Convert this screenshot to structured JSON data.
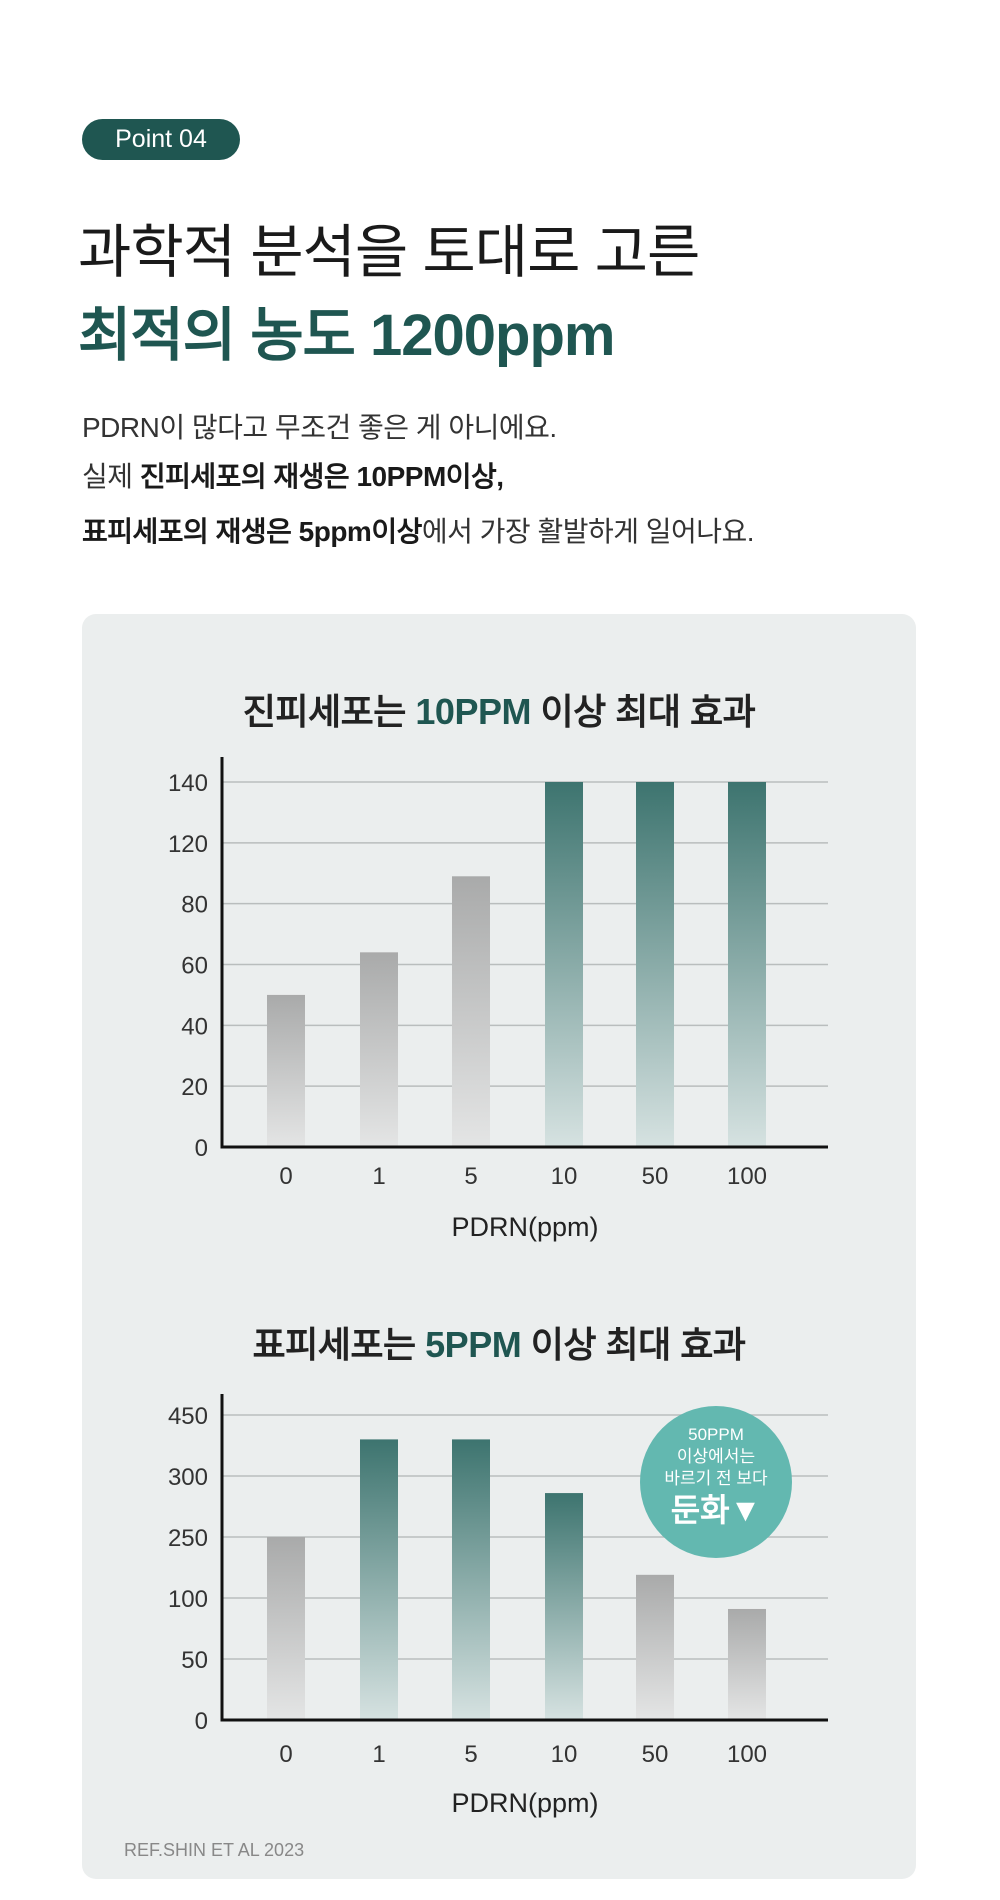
{
  "badge": "Point 04",
  "title_line1": "과학적 분석을 토대로 고른",
  "title_line2": "최적의 농도 1200ppm",
  "body": {
    "line1": "PDRN이 많다고 무조건 좋은 게 아니에요.",
    "line2_a": "실제 ",
    "line2_b": "진피세포의 재생은 10PPM이상,",
    "line3_a": "표피세포의 재생은 5ppm이상",
    "line3_b": "에서 가장 활발하게 일어나요."
  },
  "colors": {
    "accent": "#1f5651",
    "bubble": "#63b8b0",
    "panel": "#ebeeee"
  },
  "chart_data": [
    {
      "type": "bar",
      "title_a": "진피세포는 ",
      "title_hl": "10PPM",
      "title_b": " 이상 최대 효과",
      "categories": [
        "0",
        "1",
        "5",
        "10",
        "50",
        "100"
      ],
      "values": [
        50,
        64,
        98,
        140,
        140,
        140
      ],
      "highlight": [
        false,
        false,
        false,
        true,
        true,
        true
      ],
      "yticks": [
        0,
        20,
        40,
        60,
        80,
        120,
        140
      ],
      "xlabel": "PDRN(ppm)",
      "ylabel": "",
      "grid": true
    },
    {
      "type": "bar",
      "title_a": "표피세포는 ",
      "title_hl": "5PPM",
      "title_b": " 이상 최대 효과",
      "categories": [
        "0",
        "1",
        "5",
        "10",
        "50",
        "100"
      ],
      "values": [
        250,
        390,
        390,
        286,
        157,
        91
      ],
      "highlight": [
        false,
        true,
        true,
        true,
        false,
        false
      ],
      "yticks": [
        0,
        50,
        100,
        250,
        300,
        450
      ],
      "xlabel": "PDRN(ppm)",
      "ylabel": "",
      "grid": true,
      "annotation": {
        "l1": "50PPM",
        "l2": "이상에서는",
        "l3": "바르기 전 보다",
        "l4": "둔화▼"
      }
    }
  ],
  "ref": "REF.SHIN ET AL 2023"
}
